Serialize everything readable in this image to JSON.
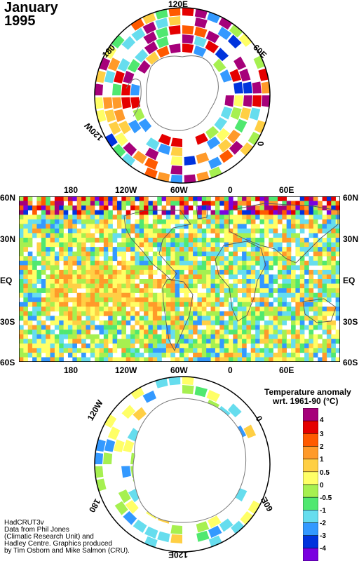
{
  "title": {
    "month": "January",
    "year": "1995"
  },
  "north_polar_labels": {
    "top": "120E",
    "upper_left": "180",
    "upper_right": "60E",
    "lower_left": "120W",
    "lower_right": "0"
  },
  "map_labels": {
    "top": [
      "180",
      "120W",
      "60W",
      "0",
      "60E"
    ],
    "bottom": [
      "180",
      "120W",
      "60W",
      "0",
      "60E"
    ],
    "left": [
      "60N",
      "30N",
      "EQ",
      "30S",
      "60S"
    ],
    "right": [
      "60N",
      "30N",
      "EQ",
      "30S",
      "60S"
    ]
  },
  "south_polar_labels": {
    "upper_left": "120W",
    "upper_right": "0",
    "lower_left": "180",
    "lower_right": "60E",
    "bottom": "120E"
  },
  "legend": {
    "title_line1": "Temperature anomaly",
    "title_line2": "wrt. 1961-90  (°C)",
    "labels": [
      "4",
      "3",
      "2",
      "1",
      "0.5",
      "0",
      "-0.5",
      "-1",
      "-2",
      "-3",
      "-4"
    ],
    "colors": [
      "#a6007a",
      "#e50000",
      "#ff5a00",
      "#ff9a2a",
      "#ffcf44",
      "#ffff66",
      "#a6f050",
      "#50e870",
      "#66ddee",
      "#3399ff",
      "#0033dd",
      "#7a00e0"
    ]
  },
  "credit": [
    "HadCRUT3v",
    "Data from Phil Jones",
    "(Climatic Research Unit) and",
    "Hadley Centre.  Graphics produced",
    "by Tim Osborn and Mike Salmon (CRU)."
  ]
}
